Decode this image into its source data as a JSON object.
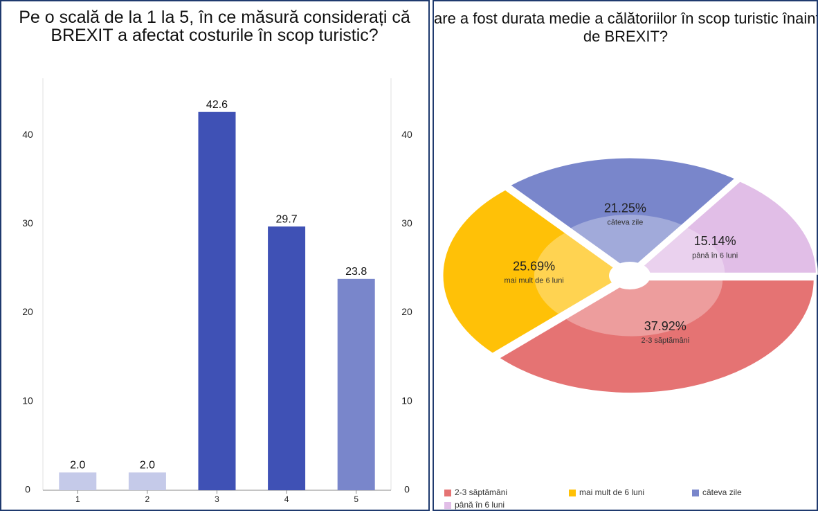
{
  "chart_data": [
    {
      "type": "bar",
      "title": "Pe o scală de la 1 la 5, în ce măsură considerați că BREXIT a afectat costurile în scop turistic?",
      "categories": [
        "1",
        "2",
        "3",
        "4",
        "5"
      ],
      "values": [
        2.0,
        2.0,
        42.6,
        29.7,
        23.8
      ],
      "value_labels": [
        "2.0",
        "2.0",
        "42.6",
        "29.7",
        "23.8"
      ],
      "colors": [
        "#c5cae9",
        "#c5cae9",
        "#3f51b5",
        "#3f51b5",
        "#7986cb"
      ],
      "ylim": [
        0,
        46.4
      ],
      "yticks": [
        0,
        10,
        20,
        30,
        40
      ],
      "y2lim": [
        0,
        46.4
      ],
      "y2ticks": [
        0,
        10,
        20,
        30,
        40
      ]
    },
    {
      "type": "pie",
      "title": "Care a fost durata medie a călătoriilor în scop turistic înainte de BREXIT?",
      "categories": [
        "2-3 săptămâni",
        "mai mult de 6 luni",
        "câteva zile",
        "până în 6 luni"
      ],
      "values": [
        37.92,
        25.69,
        21.25,
        15.14
      ],
      "value_labels": [
        "37.92%",
        "25.69%",
        "21.25%",
        "15.14%"
      ],
      "colors": [
        "#e57373",
        "#ffc107",
        "#7986cb",
        "#e1bee7"
      ],
      "legend": "bottom"
    }
  ]
}
